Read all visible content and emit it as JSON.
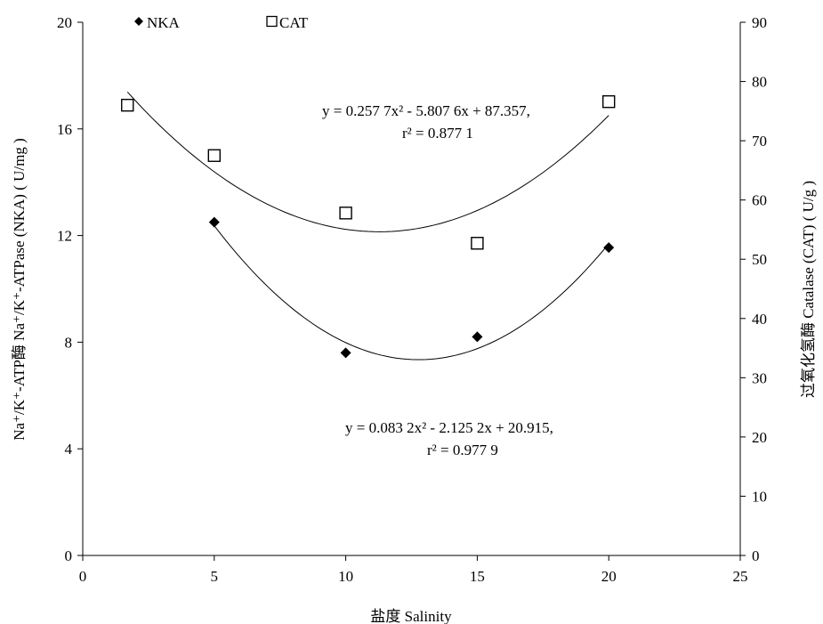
{
  "chart_data": {
    "type": "scatter",
    "xlabel": "盐度 Salinity",
    "ylabel_left": "Na⁺/K⁺-ATP酶 Na⁺/K⁺-ATPase (NKA) ( U/mg )",
    "ylabel_right": "过氧化氢酶 Catalase (CAT) ( U/g )",
    "xlim": [
      0,
      25
    ],
    "ylim_left": [
      0,
      20
    ],
    "ylim_right": [
      0,
      90
    ],
    "x_ticks": [
      "0",
      "5",
      "10",
      "15",
      "20",
      "25"
    ],
    "y_left_ticks": [
      "0",
      "4",
      "8",
      "12",
      "16",
      "20"
    ],
    "y_right_ticks": [
      "0",
      "10",
      "20",
      "30",
      "40",
      "50",
      "60",
      "70",
      "80",
      "90"
    ],
    "legend_placement": "top-left",
    "grid": false,
    "series": [
      {
        "name": "NKA",
        "marker": "diamond",
        "axis": "left",
        "color": "#000000",
        "x": [
          5,
          10,
          15,
          20
        ],
        "y": [
          12.5,
          7.6,
          8.2,
          11.55
        ],
        "fit": {
          "a": 0.0832,
          "b": -2.1252,
          "c": 20.915,
          "xmin": 5,
          "xmax": 20
        },
        "equation": "y = 0.083 2x² - 2.125 2x + 20.915,",
        "r2": "r² = 0.977 9"
      },
      {
        "name": "CAT",
        "marker": "square-open",
        "axis": "right",
        "color": "#000000",
        "x": [
          1.7,
          5,
          10,
          15,
          20
        ],
        "y": [
          76,
          67.5,
          57.8,
          52.7,
          76.6
        ],
        "fit": {
          "a": 0.2577,
          "b": -5.8076,
          "c": 87.357,
          "xmin": 1.7,
          "xmax": 20
        },
        "equation": "y = 0.257  7x² - 5.807 6x + 87.357,",
        "r2": "r² = 0.877 1"
      }
    ]
  }
}
